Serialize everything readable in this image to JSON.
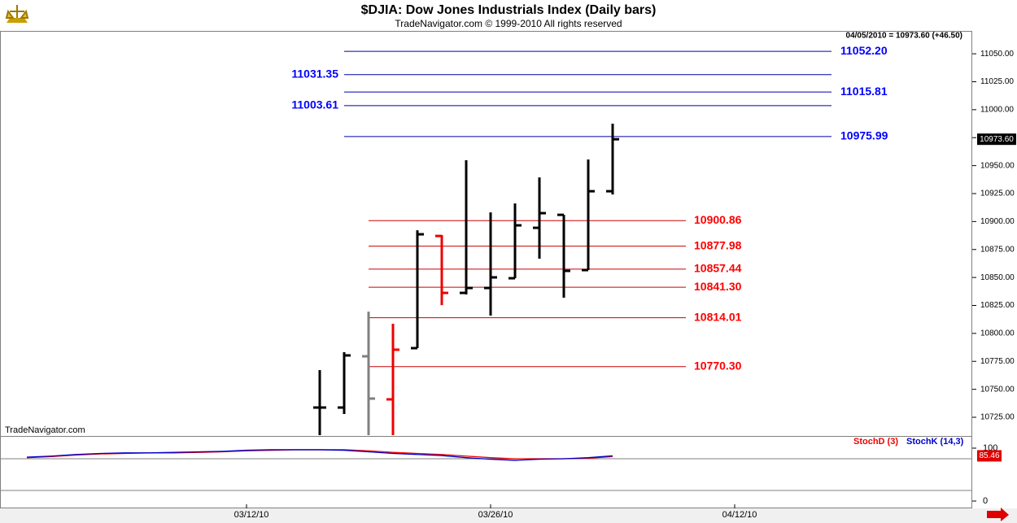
{
  "chart_data": {
    "type": "ohlc",
    "title": "$DJIA:  Dow Jones Industrials Index  (Daily bars)",
    "subtitle": "TradeNavigator.com © 1999-2010 All rights reserved",
    "watermark": "TradeNavigator.com",
    "quote_text": "04/05/2010 = 10973.60 (+46.50)",
    "price_marker": {
      "value": 10973.6,
      "label": "10973.60"
    },
    "categories": [
      null,
      null,
      null,
      null,
      null,
      null,
      null,
      null,
      null,
      null,
      "03/12/10",
      null,
      null,
      null,
      null,
      null,
      null,
      null,
      null,
      null,
      "03/26/10",
      null,
      null,
      null,
      null,
      null,
      null,
      null,
      null,
      null,
      "04/12/10",
      null,
      null,
      null,
      null,
      null,
      null,
      null,
      null,
      null
    ],
    "open": [
      null,
      null,
      null,
      null,
      null,
      null,
      null,
      null,
      null,
      null,
      null,
      null,
      null,
      10733.7,
      10733.7,
      10779.5,
      10741.0,
      10786.8,
      10887.1,
      10836.2,
      10840.6,
      10849.3,
      10894.4,
      10906.0,
      10856.6,
      10927.1,
      null,
      null,
      null,
      null,
      null,
      null,
      null,
      null,
      null,
      null,
      null,
      null,
      null,
      null
    ],
    "high": [
      null,
      null,
      null,
      null,
      null,
      null,
      null,
      null,
      null,
      null,
      null,
      null,
      null,
      10767.2,
      10783.2,
      10819.5,
      10808.6,
      10892.2,
      10887.9,
      10954.8,
      10908.2,
      10916.2,
      10939.5,
      10906.0,
      10955.5,
      10987.5,
      null,
      null,
      null,
      null,
      null,
      null,
      null,
      null,
      null,
      null,
      null,
      null,
      null,
      null
    ],
    "low": [
      null,
      null,
      null,
      null,
      null,
      null,
      null,
      null,
      null,
      null,
      null,
      null,
      null,
      10705,
      10727.9,
      10705,
      10705,
      10786.8,
      10825.3,
      10834.8,
      10815.9,
      10849.3,
      10866.8,
      10831.9,
      10856.6,
      10924.2,
      null,
      null,
      null,
      null,
      null,
      null,
      null,
      null,
      null,
      null,
      null,
      null,
      null,
      null
    ],
    "close": [
      null,
      null,
      null,
      null,
      null,
      null,
      null,
      null,
      null,
      null,
      null,
      null,
      null,
      10733.7,
      10780.3,
      10741.7,
      10785.4,
      10888.6,
      10836.2,
      10840.6,
      10850.1,
      10896.6,
      10907.5,
      10855.9,
      10927.1,
      10973.6,
      null,
      null,
      null,
      null,
      null,
      null,
      null,
      null,
      null,
      null,
      null,
      null,
      null,
      null
    ],
    "bar_colors": [
      null,
      null,
      null,
      null,
      null,
      null,
      null,
      null,
      null,
      null,
      null,
      null,
      null,
      "#000000",
      "#000000",
      "#808080",
      "#ee0000",
      "#000000",
      "#ee0000",
      "#000000",
      "#000000",
      "#000000",
      "#000000",
      "#000000",
      "#000000",
      "#000000",
      null,
      null,
      null,
      null,
      null,
      null,
      null,
      null,
      null,
      null,
      null,
      null,
      null,
      null
    ],
    "ylim": [
      10709,
      11069
    ],
    "yticks": [
      {
        "value": 10725,
        "label": "10725.00"
      },
      {
        "value": 10750,
        "label": "10750.00"
      },
      {
        "value": 10775,
        "label": "10775.00"
      },
      {
        "value": 10800,
        "label": "10800.00"
      },
      {
        "value": 10825,
        "label": "10825.00"
      },
      {
        "value": 10850,
        "label": "10850.00"
      },
      {
        "value": 10875,
        "label": "10875.00"
      },
      {
        "value": 10900,
        "label": "10900.00"
      },
      {
        "value": 10925,
        "label": "10925.00"
      },
      {
        "value": 10950,
        "label": "10950.00"
      },
      {
        "value": 10975,
        "label": "10975.00"
      },
      {
        "value": 11000,
        "label": "11000.00"
      },
      {
        "value": 11025,
        "label": "11025.00"
      },
      {
        "value": 11050,
        "label": "11050.00"
      }
    ],
    "levels": [
      {
        "value": 11052.2,
        "value_label": "11052.20",
        "color": "#0000ff",
        "side": "right"
      },
      {
        "value": 11031.35,
        "color": "#0000ff",
        "side": "left"
      },
      {
        "value": 11015.81,
        "color": "#0000ff",
        "side": "right"
      },
      {
        "value": 11003.61,
        "color": "#0000ff",
        "side": "left"
      },
      {
        "value": 10975.99,
        "color": "#0000ff",
        "side": "right"
      },
      {
        "value": 10900.86,
        "color": "#ff0000",
        "side": "mid"
      },
      {
        "value": 10877.98,
        "color": "#ff0000",
        "side": "mid"
      },
      {
        "value": 10857.44,
        "color": "#ff0000",
        "side": "mid"
      },
      {
        "value": 10841.3,
        "value_label": "10841.30",
        "color": "#ff0000",
        "side": "mid"
      },
      {
        "value": 10814.01,
        "color": "#ff0000",
        "side": "mid"
      },
      {
        "value": 10770.3,
        "value_label": "10770.30",
        "color": "#ff0000",
        "side": "mid"
      }
    ],
    "lower": {
      "ylim": [
        -12.3,
        121.5
      ],
      "yticks": [
        0,
        100
      ],
      "hlines": [
        20,
        80
      ],
      "series": [
        {
          "name": "StochD (3)",
          "color": "#ee0000",
          "values": [
            null,
            82,
            84,
            87,
            89,
            90,
            91,
            91,
            92,
            93,
            95,
            96,
            97,
            97,
            97,
            95,
            92,
            90,
            88,
            85,
            82,
            80,
            80,
            80,
            81,
            84,
            null,
            null,
            null,
            null,
            null,
            null,
            null,
            null,
            null,
            null,
            null,
            null,
            null,
            null
          ]
        },
        {
          "name": "StochK (14,3)",
          "color": "#0000cc",
          "values": [
            null,
            83,
            85,
            88,
            90,
            91,
            91,
            92,
            93,
            94,
            96,
            97,
            97,
            97,
            96,
            93,
            90,
            88,
            86,
            82,
            79,
            77,
            79,
            80,
            82,
            85.46,
            null,
            null,
            null,
            null,
            null,
            null,
            null,
            null,
            null,
            null,
            null,
            null,
            null,
            null
          ]
        }
      ]
    }
  }
}
